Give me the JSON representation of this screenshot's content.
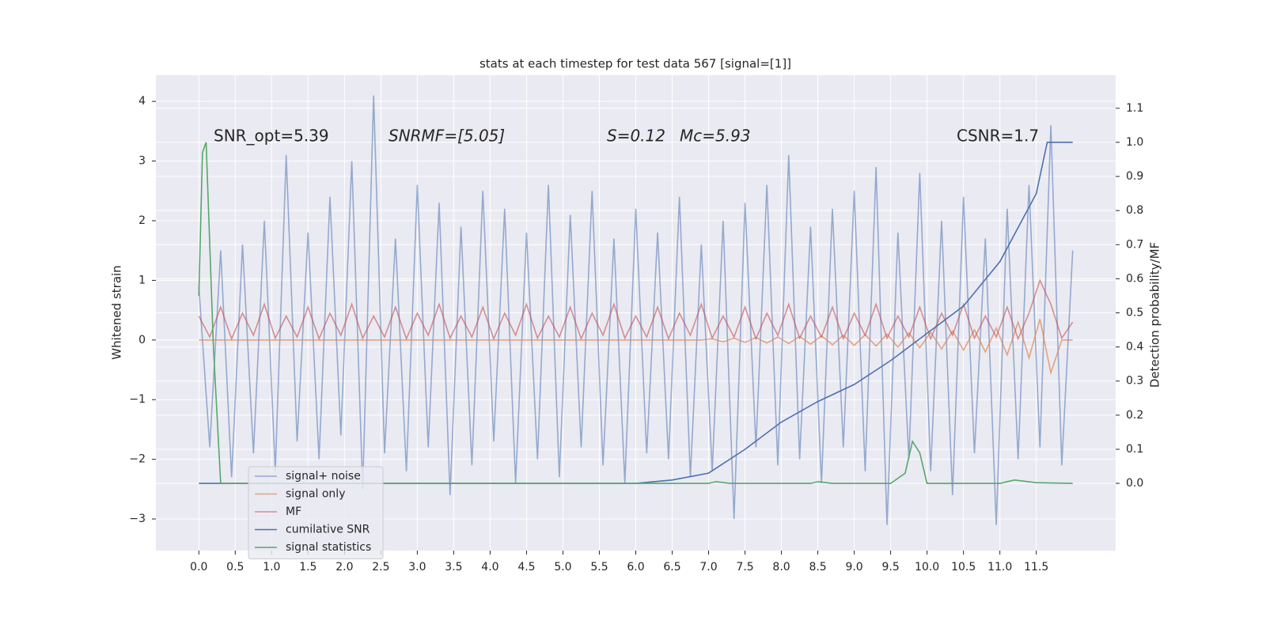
{
  "chart_data": {
    "type": "line",
    "title": "stats at each timestep for test data 567 [signal=[1]]",
    "ylabel": "Whitened strain",
    "y2label": "Detection probability/MF",
    "annotations": [
      "SNR_opt=5.39",
      "SNRMF=[5.05]",
      "S=0.12",
      "Mc=5.93",
      "CSNR=1.7"
    ],
    "xlim": [
      -0.59,
      12.59
    ],
    "ylim": [
      -3.53,
      4.44
    ],
    "y2lim": [
      -0.197,
      1.197
    ],
    "grid": true,
    "legend": "lower left",
    "xticks": [
      {
        "value": 0,
        "label": "0.0"
      },
      0.5,
      {
        "value": 1,
        "label": "1.0"
      },
      1.5,
      {
        "value": 2,
        "label": "2.0"
      },
      2.5,
      {
        "value": 3,
        "label": "3.0"
      },
      3.5,
      {
        "value": 4,
        "label": "4.0"
      },
      4.5,
      {
        "value": 5,
        "label": "5.0"
      },
      5.5,
      {
        "value": 6,
        "label": "6.0"
      },
      6.5,
      {
        "value": 7,
        "label": "7.0"
      },
      7.5,
      {
        "value": 8,
        "label": "8.0"
      },
      8.5,
      {
        "value": 9,
        "label": "9.0"
      },
      9.5,
      {
        "value": 10,
        "label": "10.0"
      },
      10.5,
      {
        "value": 11,
        "label": "11.0"
      },
      11.5
    ],
    "yticks": [
      {
        "value": -3,
        "label": "−3"
      },
      {
        "value": -2,
        "label": "−2"
      },
      {
        "value": -1,
        "label": "−1"
      },
      0,
      1,
      2,
      3,
      4
    ],
    "y2ticks": [
      {
        "value": 0,
        "label": "0.0"
      },
      0.1,
      0.2,
      0.3,
      0.4,
      0.5,
      0.6,
      0.7,
      0.8,
      0.9,
      {
        "value": 1,
        "label": "1.0"
      },
      1.1
    ],
    "x": [
      0,
      0.15,
      0.3,
      0.45,
      0.6,
      0.75,
      0.9,
      1.05,
      1.2,
      1.35,
      1.5,
      1.65,
      1.8,
      1.95,
      2.1,
      2.25,
      2.4,
      2.55,
      2.7,
      2.85,
      3.0,
      3.15,
      3.3,
      3.45,
      3.6,
      3.75,
      3.9,
      4.05,
      4.2,
      4.35,
      4.5,
      4.65,
      4.8,
      4.95,
      5.1,
      5.25,
      5.4,
      5.55,
      5.7,
      5.85,
      6.0,
      6.15,
      6.3,
      6.45,
      6.6,
      6.75,
      6.9,
      7.05,
      7.2,
      7.35,
      7.5,
      7.65,
      7.8,
      7.95,
      8.1,
      8.25,
      8.4,
      8.55,
      8.7,
      8.85,
      9.0,
      9.15,
      9.3,
      9.45,
      9.6,
      9.75,
      9.9,
      10.05,
      10.2,
      10.35,
      10.5,
      10.65,
      10.8,
      10.95,
      11.1,
      11.25,
      11.4,
      11.55,
      11.7,
      11.85,
      12.0
    ],
    "series": [
      {
        "name": "signal+ noise",
        "color": "#4c72b0",
        "opacity": 0.55,
        "values": [
          0.9,
          -1.8,
          1.5,
          -2.3,
          1.6,
          -1.9,
          2.0,
          -2.2,
          3.1,
          -1.7,
          1.8,
          -2.0,
          2.4,
          -1.6,
          3.0,
          -2.5,
          4.1,
          -1.9,
          1.7,
          -2.2,
          2.6,
          -1.8,
          2.3,
          -2.6,
          1.9,
          -2.1,
          2.5,
          -1.7,
          2.2,
          -2.4,
          1.8,
          -2.0,
          2.6,
          -2.3,
          2.1,
          -1.8,
          2.5,
          -2.1,
          1.7,
          -2.4,
          2.2,
          -1.9,
          1.8,
          -2.0,
          2.4,
          -2.3,
          1.6,
          -2.2,
          2.0,
          -3.0,
          2.3,
          -1.8,
          2.6,
          -2.1,
          3.1,
          -2.0,
          1.9,
          -2.4,
          2.2,
          -1.8,
          2.5,
          -2.2,
          2.9,
          -3.1,
          1.8,
          -2.0,
          2.8,
          -2.2,
          2.0,
          -2.6,
          2.4,
          -1.9,
          1.7,
          -3.1,
          2.2,
          -2.0,
          2.6,
          -1.8,
          3.6,
          -2.1,
          1.5
        ]
      },
      {
        "name": "signal only",
        "color": "#dd8452",
        "opacity": 0.7,
        "values": [
          0,
          0,
          0,
          0,
          0,
          0,
          0,
          0,
          0,
          0,
          0,
          0,
          0,
          0,
          0,
          0,
          0,
          0,
          0,
          0,
          0,
          0,
          0,
          0,
          0,
          0,
          0,
          0,
          0,
          0,
          0,
          0,
          0,
          0,
          0,
          0,
          0,
          0,
          0,
          0,
          0,
          0,
          0,
          0,
          0,
          0,
          0,
          0.02,
          -0.03,
          0.03,
          -0.04,
          0.04,
          -0.05,
          0.05,
          -0.06,
          0.06,
          -0.07,
          0.07,
          -0.08,
          0.08,
          -0.09,
          0.09,
          -0.1,
          0.1,
          -0.12,
          0.12,
          -0.13,
          0.13,
          -0.15,
          0.15,
          -0.17,
          0.17,
          -0.2,
          0.2,
          -0.25,
          0.3,
          -0.3,
          0.35,
          -0.55,
          0,
          0
        ]
      },
      {
        "name": "MF",
        "color": "#c44e52",
        "opacity": 0.6,
        "values": [
          0.4,
          0.05,
          0.55,
          0.02,
          0.45,
          0.08,
          0.6,
          0.03,
          0.4,
          0.05,
          0.55,
          0.02,
          0.45,
          0.08,
          0.6,
          0.03,
          0.4,
          0.05,
          0.55,
          0.02,
          0.45,
          0.08,
          0.6,
          0.03,
          0.4,
          0.05,
          0.55,
          0.02,
          0.45,
          0.08,
          0.6,
          0.03,
          0.4,
          0.05,
          0.55,
          0.02,
          0.45,
          0.08,
          0.6,
          0.03,
          0.4,
          0.05,
          0.55,
          0.02,
          0.45,
          0.08,
          0.6,
          0.03,
          0.4,
          0.05,
          0.55,
          0.02,
          0.45,
          0.08,
          0.6,
          0.03,
          0.4,
          0.05,
          0.55,
          0.02,
          0.45,
          0.08,
          0.6,
          0.03,
          0.4,
          0.05,
          0.55,
          0.02,
          0.45,
          0.08,
          0.6,
          0.03,
          0.4,
          0.05,
          0.55,
          0.02,
          0.45,
          1.0,
          0.6,
          0.03,
          0.3
        ]
      },
      {
        "name": "cumilative SNR",
        "color": "#4c72b0",
        "opacity": 1,
        "axis": "y2",
        "x": [
          0,
          6.0,
          6.5,
          7.0,
          7.5,
          8.0,
          8.5,
          9.0,
          9.5,
          10.0,
          10.5,
          11.0,
          11.5,
          11.65,
          12.0
        ],
        "values": [
          0,
          0,
          0.01,
          0.03,
          0.1,
          0.18,
          0.24,
          0.29,
          0.36,
          0.44,
          0.52,
          0.65,
          0.85,
          1.0,
          1.0
        ]
      },
      {
        "name": "signal statistics",
        "color": "#55a868",
        "opacity": 1,
        "axis": "y2",
        "x": [
          0,
          0.05,
          0.1,
          0.2,
          0.3,
          7.0,
          7.1,
          7.3,
          8.4,
          8.5,
          8.7,
          9.5,
          9.7,
          9.8,
          9.9,
          10.0,
          11.0,
          11.2,
          11.5,
          12.0
        ],
        "values": [
          0.55,
          0.97,
          1.0,
          0.4,
          0,
          0,
          0.005,
          0,
          0,
          0.005,
          0,
          0,
          0.03,
          0.123,
          0.09,
          0,
          0,
          0.01,
          0.002,
          0
        ]
      }
    ]
  }
}
